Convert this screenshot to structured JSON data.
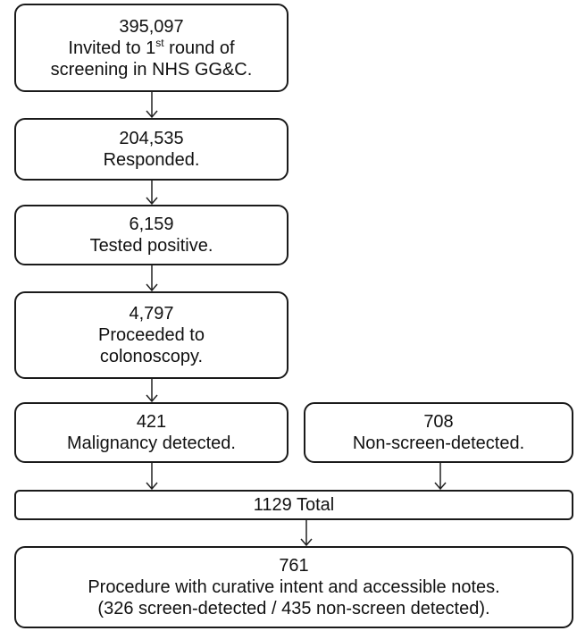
{
  "nodes": [
    {
      "lines": [
        "395,097",
        {
          "text": "Invited to 1",
          "sup": "st",
          "rest": " round of"
        },
        "screening in NHS GG&C."
      ]
    },
    {
      "lines": [
        "204,535",
        "Responded."
      ]
    },
    {
      "lines": [
        "6,159",
        "Tested positive."
      ]
    },
    {
      "lines": [
        "4,797",
        "Proceeded to",
        "colonoscopy."
      ]
    },
    {
      "lines": [
        "421",
        "Malignancy detected."
      ]
    },
    {
      "lines": [
        "708",
        "Non-screen-detected."
      ]
    },
    {
      "lines": [
        "1129 Total"
      ]
    },
    {
      "lines": [
        "761",
        "Procedure with curative intent and accessible notes.",
        "(326 screen-detected / 435 non-screen detected)."
      ]
    }
  ]
}
